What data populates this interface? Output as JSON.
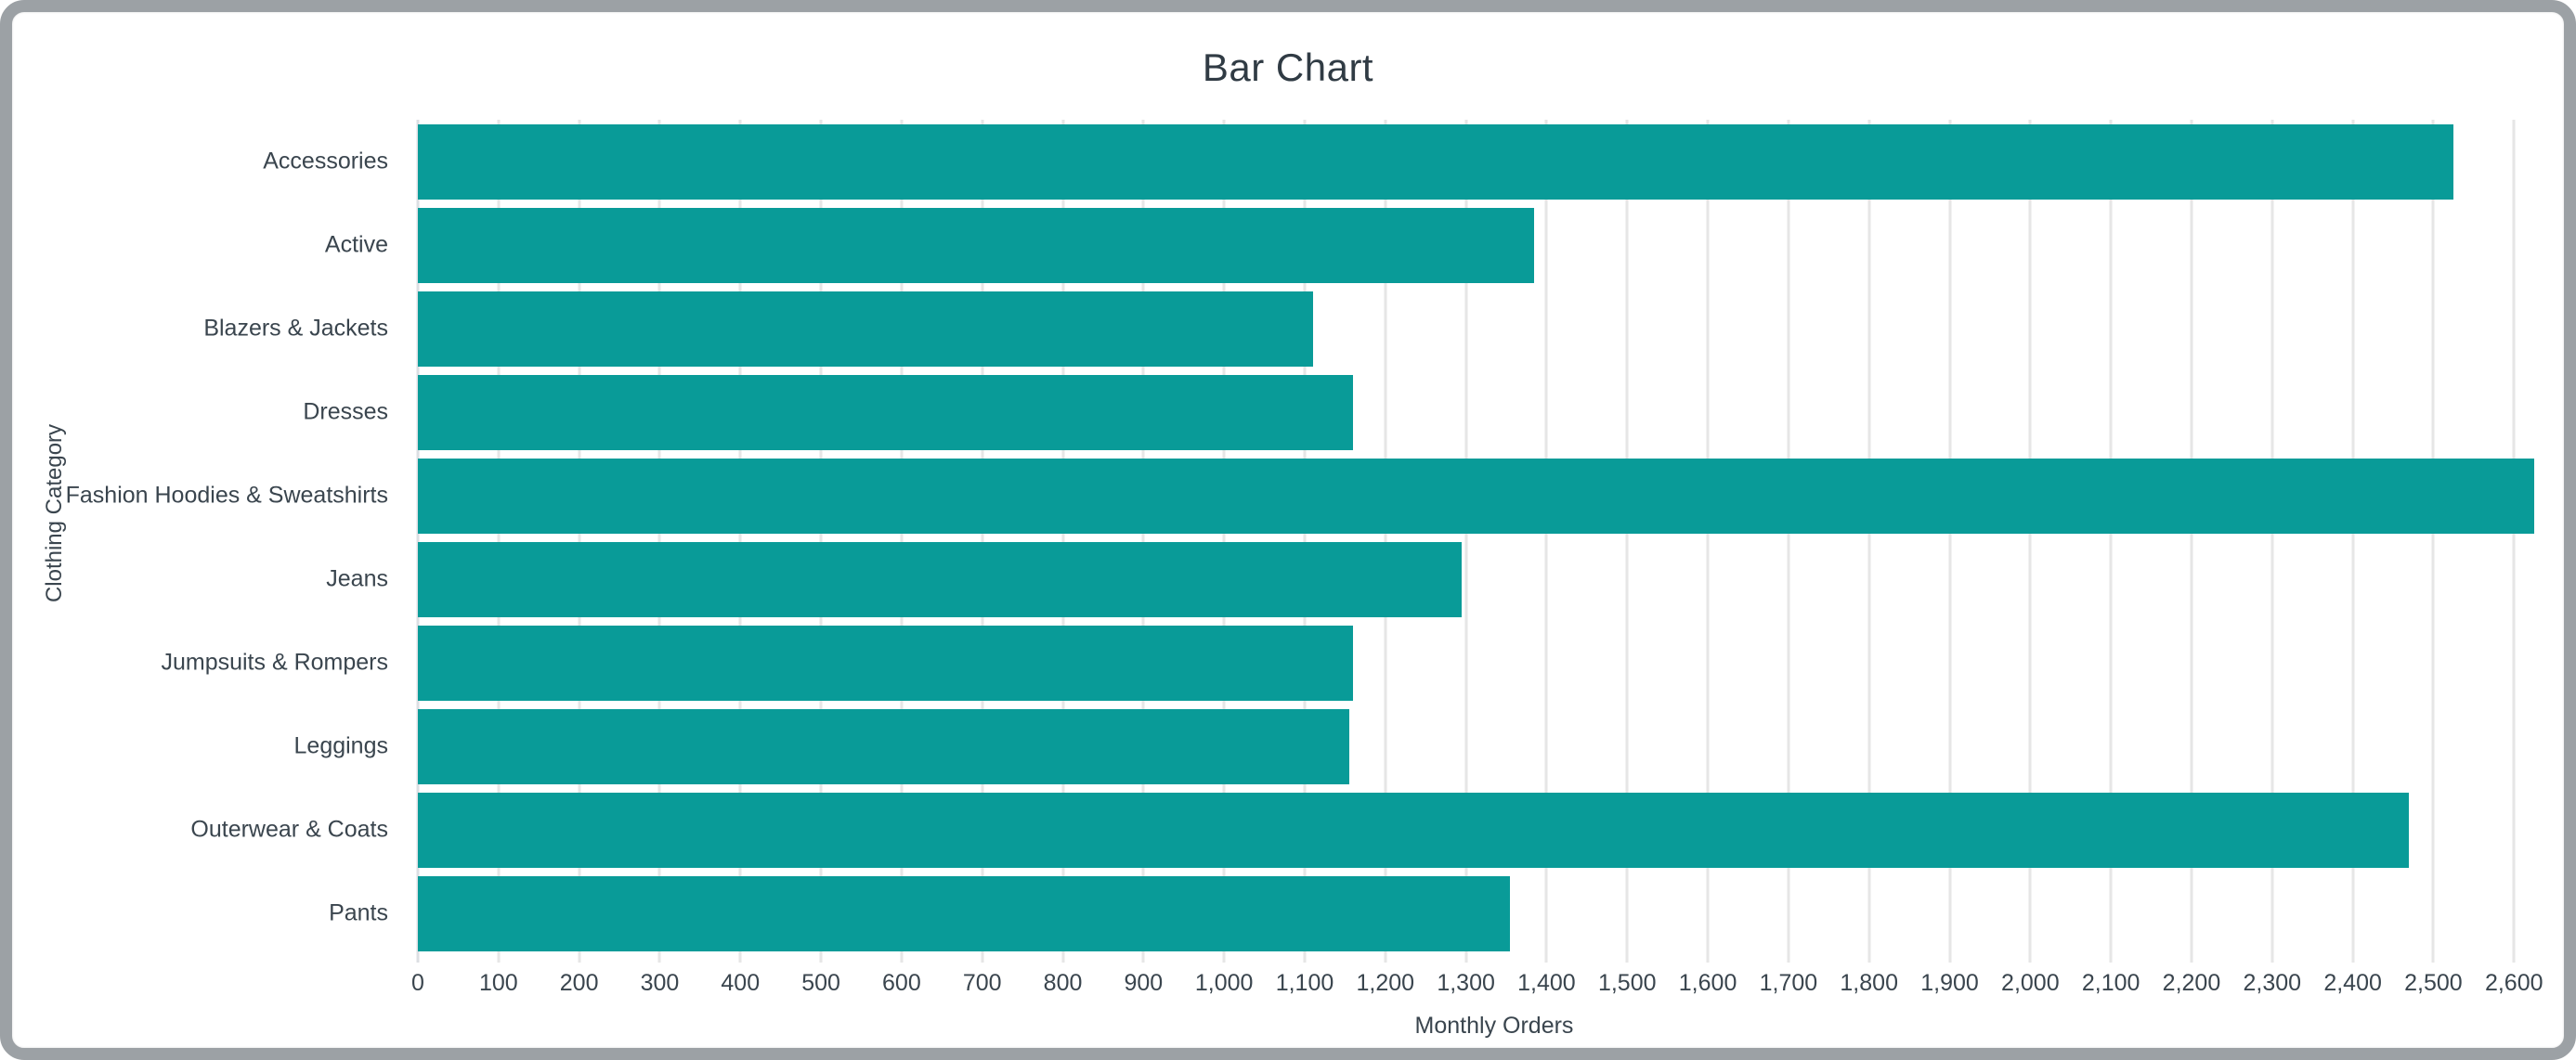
{
  "window": {
    "background_color": "#ffffff",
    "frame_border_color": "#9ca1a5"
  },
  "chart_data": {
    "type": "bar",
    "orientation": "horizontal",
    "title": "Bar Chart",
    "xlabel": "Monthly Orders",
    "ylabel": "Clothing Category",
    "categories": [
      "Accessories",
      "Active",
      "Blazers & Jackets",
      "Dresses",
      "Fashion Hoodies & Sweatshirts",
      "Jeans",
      "Jumpsuits & Rompers",
      "Leggings",
      "Outerwear & Coats",
      "Pants"
    ],
    "values": [
      2525,
      1385,
      1110,
      1160,
      2625,
      1295,
      1160,
      1155,
      2470,
      1355
    ],
    "xlim": [
      0,
      2670
    ],
    "x_tick_values": [
      0,
      100,
      200,
      300,
      400,
      500,
      600,
      700,
      800,
      900,
      1000,
      1100,
      1200,
      1300,
      1400,
      1500,
      1600,
      1700,
      1800,
      1900,
      2000,
      2100,
      2200,
      2300,
      2400,
      2500,
      2600
    ],
    "x_tick_labels": [
      "0",
      "100",
      "200",
      "300",
      "400",
      "500",
      "600",
      "700",
      "800",
      "900",
      "1,000",
      "1,100",
      "1,200",
      "1,300",
      "1,400",
      "1,500",
      "1,600",
      "1,700",
      "1,800",
      "1,900",
      "2,000",
      "2,100",
      "2,200",
      "2,300",
      "2,400",
      "2,500",
      "2,600"
    ],
    "bar_color": "#099b98",
    "grid": true,
    "grid_color": "#e6e6e6",
    "text_color": "#3a454e",
    "legend_position": "none"
  }
}
